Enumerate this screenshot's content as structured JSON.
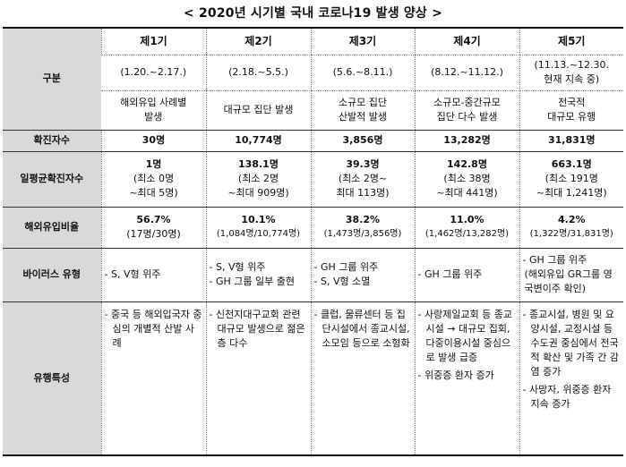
{
  "title": "< 2020년 시기별 국내 코로나19 발생 양상 >",
  "header_label": "구분",
  "phases": [
    {
      "name": "제1기",
      "period": "(1.20.~2.17.)",
      "desc": [
        "해외유입 사례별",
        "발생"
      ]
    },
    {
      "name": "제2기",
      "period": "(2.18.~5.5.)",
      "desc": [
        "대규모 집단 발생"
      ]
    },
    {
      "name": "제3기",
      "period": "(5.6.~8.11.)",
      "desc": [
        "소규모 집단",
        "산발적 발생"
      ]
    },
    {
      "name": "제4기",
      "period": "(8.12.~11.12.)",
      "desc": [
        "소규모-중간규모",
        "집단 다수 발생"
      ]
    },
    {
      "name": "제5기",
      "period": [
        "(11.13.~12.30.",
        "현재 지속 중)"
      ],
      "desc": [
        "전국적",
        "대규모 유행"
      ]
    }
  ],
  "rows": {
    "confirmed": {
      "label": "확진자수",
      "values": [
        "30명",
        "10,774명",
        "3,856명",
        "13,282명",
        "31,831명"
      ]
    },
    "daily_avg": {
      "label": "일평균확진자수",
      "values": [
        [
          "1명",
          "(최소 0명",
          "~최대 5명)"
        ],
        [
          "138.1명",
          "(최소 2명",
          "~최대 909명)"
        ],
        [
          "39.3명",
          "(최소 2명~",
          "최대 113명)"
        ],
        [
          "142.8명",
          "(최소 38명",
          "~최대 441명)"
        ],
        [
          "663.1명",
          "(최소 191명",
          "~최대 1,241명)"
        ]
      ]
    },
    "overseas": {
      "label": "해외유입비율",
      "values": [
        [
          "56.7%",
          "(17명/30명)"
        ],
        [
          "10.1%",
          "(1,084명/10,774명)"
        ],
        [
          "38.2%",
          "(1,473명/3,856명)"
        ],
        [
          "11.0%",
          "(1,462명/13,282명)"
        ],
        [
          "4.2%",
          "(1,322명/31,831명)"
        ]
      ]
    },
    "virus": {
      "label": "바이러스 유형",
      "values": [
        [
          "- S, V형 위주"
        ],
        [
          "- S, V형 위주",
          "- GH 그룹 일부 출현"
        ],
        [
          "- GH 그룹 위주",
          "- S, V형 소멸"
        ],
        [
          "- GH 그룹 위주"
        ],
        [
          "- GH 그룹 위주",
          "(해외유입 GR그룹 영국변이주 확인)"
        ]
      ]
    },
    "features": {
      "label": "유행특성",
      "values": [
        [
          "- 중국 등 해외입국자 중심의 개별적 산발 사례"
        ],
        [
          "- 신천지대구교회 관련 대규모 발생으로 젊은 층 다수"
        ],
        [
          "- 클럽, 물류센터 등 집단시설에서 종교시설, 소모임 등으로 소형화"
        ],
        [
          "- 사랑제일교회 등 종교시설 → 대규모 집회, 다중이용시설 중심으로 발생 급증",
          "- 위중증 환자 증가"
        ],
        [
          "- 종교시설, 병원 및 요양시설, 교정시설 등 수도권 중심에서 전국적 확산 및 가족 간 감염 증가",
          "- 사망자, 위중증 환자 지속 증가"
        ]
      ]
    }
  }
}
